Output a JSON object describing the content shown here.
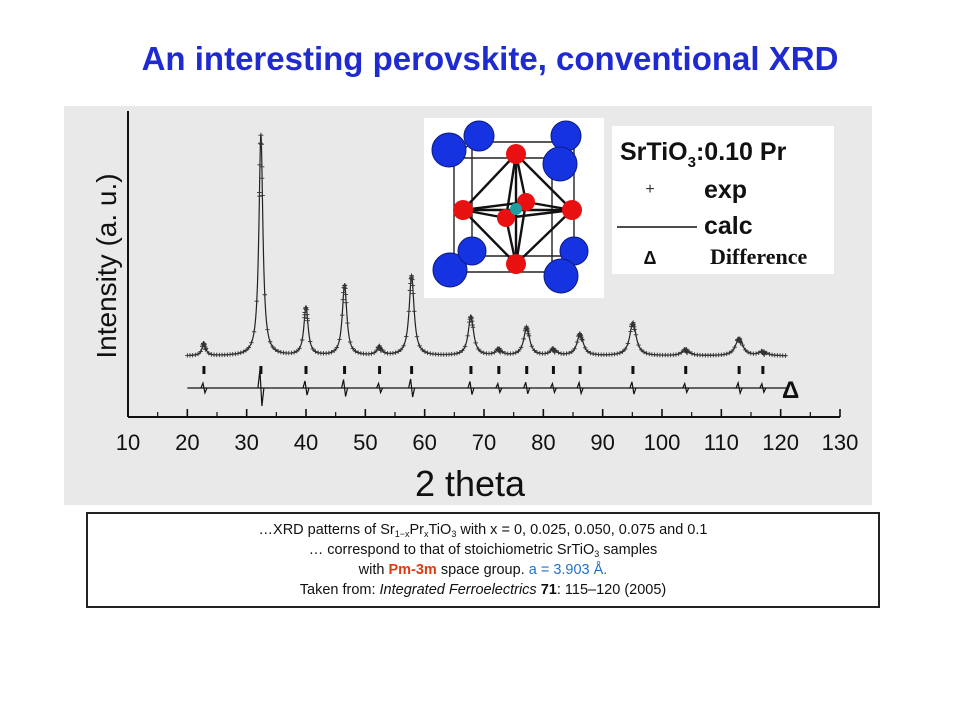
{
  "title": "An interesting perovskite, conventional XRD",
  "chart_data": {
    "type": "line",
    "xlabel": "2  theta",
    "ylabel": "Intensity (a. u.)",
    "xlim": [
      10,
      130
    ],
    "xticks": [
      "10",
      "20",
      "30",
      "40",
      "50",
      "60",
      "70",
      "80",
      "90",
      "100",
      "110",
      "120",
      "130"
    ],
    "sample_label": "SrTiO",
    "sample_label_sub": "3",
    "sample_label_suffix": ":0.10 Pr",
    "legend": [
      {
        "marker": "+",
        "label": "exp"
      },
      {
        "marker": "line",
        "label": "calc"
      },
      {
        "marker": "Δ",
        "label": "Difference"
      }
    ],
    "difference_marker": "Δ",
    "peaks": [
      {
        "x": 22.8,
        "y": 0.06
      },
      {
        "x": 32.4,
        "y": 1.0
      },
      {
        "x": 40.0,
        "y": 0.22
      },
      {
        "x": 46.5,
        "y": 0.32
      },
      {
        "x": 52.4,
        "y": 0.04
      },
      {
        "x": 57.8,
        "y": 0.36
      },
      {
        "x": 67.8,
        "y": 0.18
      },
      {
        "x": 72.5,
        "y": 0.03
      },
      {
        "x": 77.2,
        "y": 0.13
      },
      {
        "x": 81.7,
        "y": 0.03
      },
      {
        "x": 86.2,
        "y": 0.1
      },
      {
        "x": 95.1,
        "y": 0.15
      },
      {
        "x": 104.0,
        "y": 0.03
      },
      {
        "x": 113.0,
        "y": 0.08
      },
      {
        "x": 117.0,
        "y": 0.02
      }
    ],
    "grid": false,
    "legend_position": "top-right"
  },
  "caption": {
    "line1_pre": "…XRD patterns of Sr",
    "line1_sub1": "1−x",
    "line1_mid": "Pr",
    "line1_sub2": "x",
    "line1_post": "TiO",
    "line1_sub3": "3",
    "line1_tail": " with x = 0, 0.025, 0.050, 0.075 and 0.1",
    "line2_pre": "… correspond to that of stoichiometric SrTiO",
    "line2_sub": "3",
    "line2_post": " samples",
    "line3_pre": "with ",
    "line3_group": "Pm-3m",
    "line3_mid": " space group.   ",
    "line3_param": "a = 3.903 Å.",
    "line4_pre": "Taken from: ",
    "line4_journal": "Integrated Ferroelectrics",
    "line4_volume": "71",
    "line4_post": ": 115–120 (2005)"
  },
  "colors": {
    "title": "#1f2bcf",
    "figure_bg": "#e9e9e9",
    "oxygen": "#e81010",
    "strontium": "#1533e0",
    "highlight_red": "#e03a10",
    "highlight_blue": "#2271c8"
  }
}
